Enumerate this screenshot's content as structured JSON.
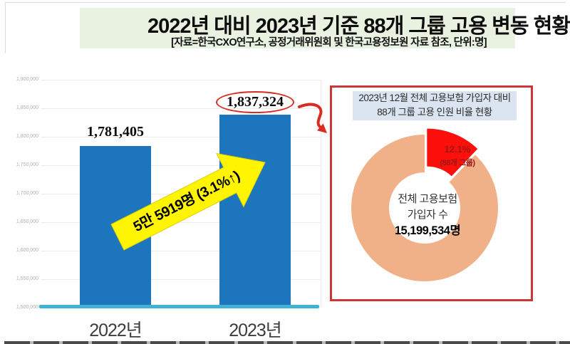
{
  "page": {
    "title": "2022년 대비 2023년 기준 88개 그룹 고용 변동 현황",
    "subtitle": "[자료=한국CXO연구소, 공정거래위원회 및 한국고용정보원 자료 참조, 단위:명]",
    "title_bg": "#e9f1e1"
  },
  "chart_data": [
    {
      "type": "bar",
      "categories": [
        "2022년",
        "2023년"
      ],
      "values": [
        1781405,
        1837324
      ],
      "value_labels": [
        "1,781,405",
        "1,837,324"
      ],
      "ylim": [
        1500000,
        1900000
      ],
      "ytick_step": 50000,
      "ytick_labels": [
        "1,900,000",
        "1,850,000",
        "1,800,000",
        "1,750,000",
        "1,700,000",
        "1,650,000",
        "1,600,000",
        "1,550,000",
        "1,500,000"
      ],
      "grid": true,
      "legend": false,
      "annotation": "5만 5919명 (3.1%↑)",
      "bar_color": "#1d76bd",
      "axis_color": "#3fb3d6",
      "annotation_arrow_color": "#fff500",
      "highlight_color": "#d92b1f"
    },
    {
      "type": "pie",
      "donut": true,
      "title_lines": [
        "2023년 12월 전체 고용보험 가입자 대비",
        "88개 그룹 고용 인원 비율 현황"
      ],
      "labels": [
        "88개 그룹",
        "전체 고용보험 가입자(나머지)"
      ],
      "values": [
        12.1,
        87.9
      ],
      "colors": [
        "#fb100c",
        "#f0b189"
      ],
      "slice_labels": [
        "12.1%",
        "(88개 그룹)"
      ],
      "slice_label_color": "#9e1717",
      "center_lines": [
        "전체 고용보험",
        "가입자 수"
      ],
      "center_value": "15,199,534명",
      "panel_border_color": "#cd3636",
      "panel_header_bg": "#dbe5f1"
    }
  ]
}
